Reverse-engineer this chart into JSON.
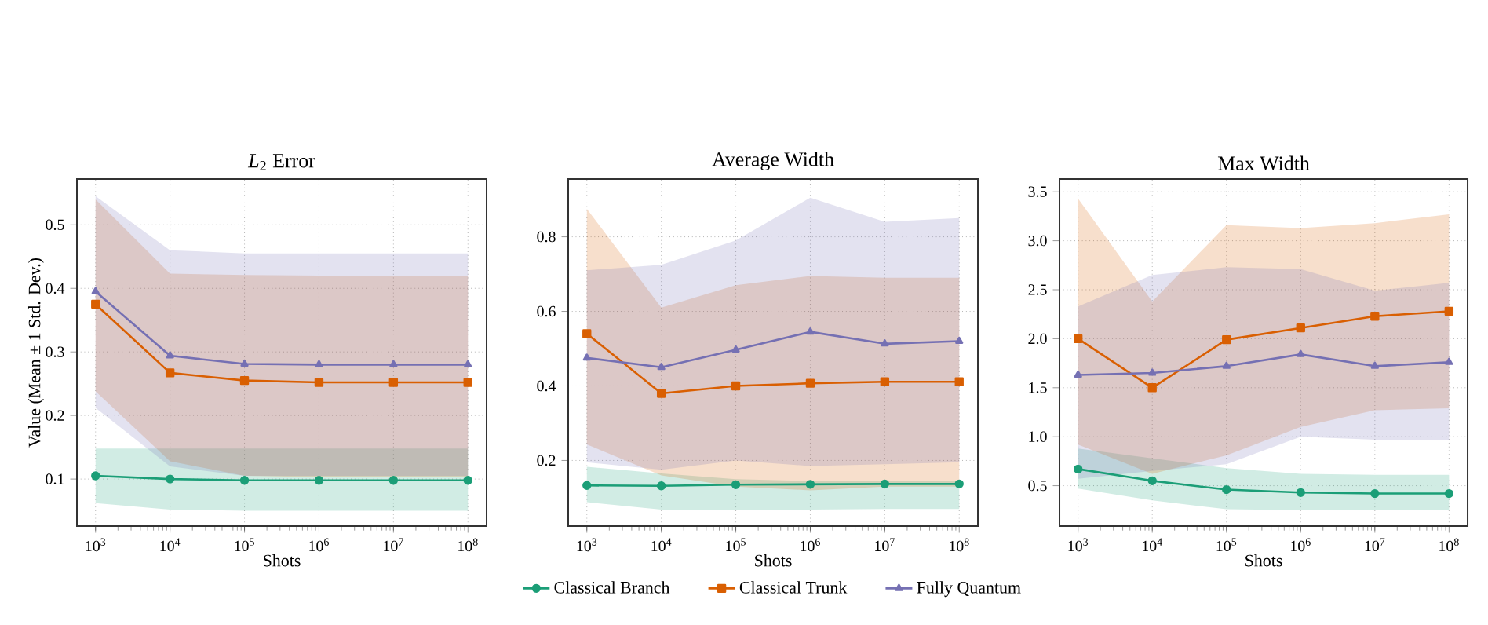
{
  "chart_data": [
    {
      "type": "line",
      "title": "*L*$_{2}$ Error",
      "xlabel": "Shots",
      "ylabel": "Value (Mean ± 1 Std. Dev.)",
      "log": "x",
      "grid": true,
      "xlim": [
        562,
        178000000
      ],
      "ylim": [
        0.026,
        0.572
      ],
      "xticks": [
        {
          "value": 1000,
          "label": "10$^{3}$"
        },
        {
          "value": 10000,
          "label": "10$^{4}$"
        },
        {
          "value": 100000,
          "label": "10$^{5}$"
        },
        {
          "value": 1000000,
          "label": "10$^{6}$"
        },
        {
          "value": 10000000,
          "label": "10$^{7}$"
        },
        {
          "value": 100000000,
          "label": "10$^{8}$"
        }
      ],
      "yticks": [
        0.1,
        0.2,
        0.3,
        0.4,
        0.5
      ],
      "x": [
        1000,
        10000,
        100000,
        1000000,
        10000000,
        100000000
      ],
      "series": [
        {
          "color": "#1b9e77",
          "marker": "circle",
          "values": [
            0.105,
            0.1,
            0.098,
            0.098,
            0.098,
            0.098
          ],
          "lower": [
            0.062,
            0.052,
            0.05,
            0.05,
            0.05,
            0.05
          ],
          "upper": [
            0.148,
            0.148,
            0.148,
            0.148,
            0.148,
            0.148
          ]
        },
        {
          "color": "#d95f02",
          "marker": "square",
          "values": [
            0.375,
            0.267,
            0.255,
            0.252,
            0.252,
            0.252
          ],
          "lower": [
            0.238,
            0.128,
            0.105,
            0.103,
            0.103,
            0.103
          ],
          "upper": [
            0.54,
            0.423,
            0.421,
            0.42,
            0.42,
            0.42
          ]
        },
        {
          "color": "#7570b3",
          "marker": "triangle",
          "values": [
            0.395,
            0.294,
            0.281,
            0.28,
            0.28,
            0.28
          ],
          "lower": [
            0.212,
            0.12,
            0.105,
            0.105,
            0.105,
            0.105
          ],
          "upper": [
            0.545,
            0.46,
            0.455,
            0.455,
            0.455,
            0.455
          ]
        }
      ]
    },
    {
      "type": "line",
      "title": "Average Width",
      "xlabel": "Shots",
      "log": "x",
      "grid": true,
      "legend": "bottom",
      "xlim": [
        562,
        178000000
      ],
      "ylim": [
        0.024,
        0.955
      ],
      "xticks": [
        {
          "value": 1000,
          "label": "10$^{3}$"
        },
        {
          "value": 10000,
          "label": "10$^{4}$"
        },
        {
          "value": 100000,
          "label": "10$^{5}$"
        },
        {
          "value": 1000000,
          "label": "10$^{6}$"
        },
        {
          "value": 10000000,
          "label": "10$^{7}$"
        },
        {
          "value": 100000000,
          "label": "10$^{8}$"
        }
      ],
      "yticks": [
        0.2,
        0.4,
        0.6,
        0.8
      ],
      "x": [
        1000,
        10000,
        100000,
        1000000,
        10000000,
        100000000
      ],
      "series": [
        {
          "name": "Classical Branch",
          "color": "#1b9e77",
          "marker": "circle",
          "values": [
            0.133,
            0.132,
            0.135,
            0.136,
            0.137,
            0.137
          ],
          "lower": [
            0.088,
            0.068,
            0.068,
            0.068,
            0.07,
            0.07
          ],
          "upper": [
            0.183,
            0.165,
            0.15,
            0.145,
            0.145,
            0.145
          ]
        },
        {
          "name": "Classical Trunk",
          "color": "#d95f02",
          "marker": "square",
          "values": [
            0.54,
            0.38,
            0.4,
            0.407,
            0.411,
            0.411
          ],
          "lower": [
            0.243,
            0.16,
            0.13,
            0.12,
            0.13,
            0.13
          ],
          "upper": [
            0.875,
            0.61,
            0.67,
            0.695,
            0.69,
            0.69
          ]
        },
        {
          "name": "Fully Quantum",
          "color": "#7570b3",
          "marker": "triangle",
          "values": [
            0.475,
            0.45,
            0.497,
            0.545,
            0.513,
            0.52
          ],
          "lower": [
            0.195,
            0.175,
            0.2,
            0.185,
            0.19,
            0.195
          ],
          "upper": [
            0.71,
            0.725,
            0.79,
            0.905,
            0.84,
            0.85
          ]
        }
      ]
    },
    {
      "type": "line",
      "title": "Max Width",
      "xlabel": "Shots",
      "log": "x",
      "grid": true,
      "xlim": [
        562,
        178000000
      ],
      "ylim": [
        0.088,
        3.63
      ],
      "xticks": [
        {
          "value": 1000,
          "label": "10$^{3}$"
        },
        {
          "value": 10000,
          "label": "10$^{4}$"
        },
        {
          "value": 100000,
          "label": "10$^{5}$"
        },
        {
          "value": 1000000,
          "label": "10$^{6}$"
        },
        {
          "value": 10000000,
          "label": "10$^{7}$"
        },
        {
          "value": 100000000,
          "label": "10$^{8}$"
        }
      ],
      "yticks": [
        {
          "value": 0.5,
          "label": "0.5"
        },
        {
          "value": 1,
          "label": "1.0"
        },
        {
          "value": 1.5,
          "label": "1.5"
        },
        {
          "value": 2,
          "label": "2.0"
        },
        {
          "value": 2.5,
          "label": "2.5"
        },
        {
          "value": 3,
          "label": "3.0"
        },
        {
          "value": 3.5,
          "label": "3.5"
        }
      ],
      "x": [
        1000,
        10000,
        100000,
        1000000,
        10000000,
        100000000
      ],
      "series": [
        {
          "color": "#1b9e77",
          "marker": "circle",
          "values": [
            0.67,
            0.55,
            0.46,
            0.43,
            0.42,
            0.42
          ],
          "lower": [
            0.47,
            0.35,
            0.26,
            0.25,
            0.25,
            0.25
          ],
          "upper": [
            0.88,
            0.78,
            0.68,
            0.62,
            0.61,
            0.61
          ]
        },
        {
          "color": "#d95f02",
          "marker": "square",
          "values": [
            2.0,
            1.5,
            1.99,
            2.11,
            2.23,
            2.28
          ],
          "lower": [
            0.92,
            0.62,
            0.81,
            1.1,
            1.27,
            1.29
          ],
          "upper": [
            3.43,
            2.38,
            3.16,
            3.13,
            3.18,
            3.27
          ]
        },
        {
          "color": "#7570b3",
          "marker": "triangle",
          "values": [
            1.63,
            1.65,
            1.72,
            1.84,
            1.72,
            1.76
          ],
          "lower": [
            0.57,
            0.65,
            0.72,
            1.0,
            0.97,
            0.97
          ],
          "upper": [
            2.33,
            2.65,
            2.73,
            2.71,
            2.49,
            2.57
          ]
        }
      ]
    }
  ]
}
